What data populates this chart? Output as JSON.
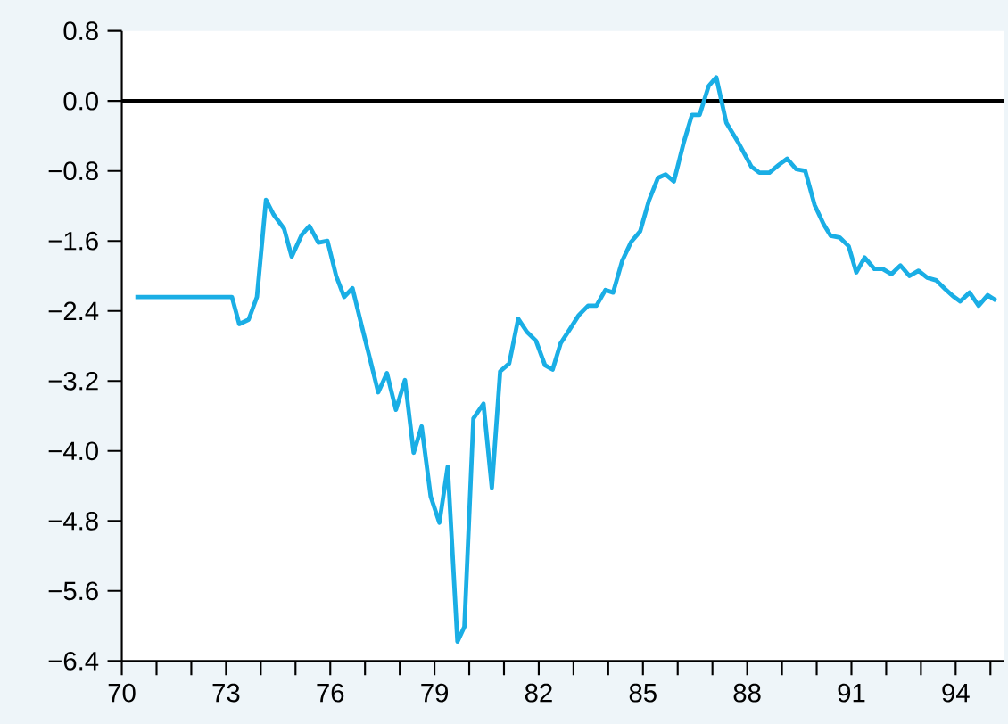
{
  "chart_data": {
    "type": "line",
    "x": [
      70.39,
      73.17,
      73.38,
      73.65,
      73.89,
      74.15,
      74.37,
      74.67,
      74.89,
      75.18,
      75.4,
      75.66,
      75.92,
      76.17,
      76.4,
      76.64,
      76.91,
      77.15,
      77.38,
      77.63,
      77.89,
      78.15,
      78.4,
      78.63,
      78.89,
      79.14,
      79.38,
      79.66,
      79.86,
      80.12,
      80.41,
      80.65,
      80.89,
      81.15,
      81.41,
      81.66,
      81.92,
      82.18,
      82.4,
      82.63,
      82.91,
      83.15,
      83.42,
      83.66,
      83.92,
      84.14,
      84.4,
      84.66,
      84.92,
      85.17,
      85.43,
      85.65,
      85.89,
      86.17,
      86.41,
      86.63,
      86.89,
      87.11,
      87.4,
      87.75,
      88.12,
      88.35,
      88.64,
      88.91,
      89.15,
      89.41,
      89.67,
      89.94,
      90.2,
      90.4,
      90.66,
      90.92,
      91.14,
      91.38,
      91.66,
      91.9,
      92.15,
      92.41,
      92.67,
      92.93,
      93.18,
      93.44,
      93.7,
      93.92,
      94.13,
      94.4,
      94.66,
      94.92,
      95.16
    ],
    "series": [
      {
        "color": "#1aaee5",
        "values": [
          -2.24,
          -2.24,
          -2.55,
          -2.5,
          -2.24,
          -1.13,
          -1.3,
          -1.46,
          -1.78,
          -1.53,
          -1.43,
          -1.62,
          -1.6,
          -2.0,
          -2.24,
          -2.14,
          -2.58,
          -2.96,
          -3.33,
          -3.11,
          -3.53,
          -3.19,
          -4.02,
          -3.72,
          -4.52,
          -4.82,
          -4.18,
          -6.18,
          -6.01,
          -3.63,
          -3.46,
          -4.42,
          -3.09,
          -3.0,
          -2.49,
          -2.64,
          -2.74,
          -3.02,
          -3.07,
          -2.77,
          -2.6,
          -2.45,
          -2.34,
          -2.34,
          -2.16,
          -2.19,
          -1.83,
          -1.61,
          -1.49,
          -1.14,
          -0.88,
          -0.84,
          -0.92,
          -0.48,
          -0.16,
          -0.16,
          0.17,
          0.27,
          -0.25,
          -0.48,
          -0.75,
          -0.82,
          -0.82,
          -0.73,
          -0.66,
          -0.78,
          -0.8,
          -1.19,
          -1.41,
          -1.54,
          -1.56,
          -1.66,
          -1.96,
          -1.79,
          -1.92,
          -1.92,
          -1.98,
          -1.88,
          -2.0,
          -1.94,
          -2.02,
          -2.05,
          -2.15,
          -2.23,
          -2.29,
          -2.19,
          -2.34,
          -2.22,
          -2.28
        ]
      }
    ],
    "xlim": [
      70,
      95.4
    ],
    "xticks": [
      {
        "value": 70,
        "label": "70"
      },
      {
        "value": 71,
        "label": null
      },
      {
        "value": 72,
        "label": null
      },
      {
        "value": 73,
        "label": "73"
      },
      {
        "value": 74,
        "label": null
      },
      {
        "value": 75,
        "label": null
      },
      {
        "value": 76,
        "label": "76"
      },
      {
        "value": 77,
        "label": null
      },
      {
        "value": 78,
        "label": null
      },
      {
        "value": 79,
        "label": "79"
      },
      {
        "value": 80,
        "label": null
      },
      {
        "value": 81,
        "label": null
      },
      {
        "value": 82,
        "label": "82"
      },
      {
        "value": 83,
        "label": null
      },
      {
        "value": 84,
        "label": null
      },
      {
        "value": 85,
        "label": "85"
      },
      {
        "value": 86,
        "label": null
      },
      {
        "value": 87,
        "label": null
      },
      {
        "value": 88,
        "label": "88"
      },
      {
        "value": 89,
        "label": null
      },
      {
        "value": 90,
        "label": null
      },
      {
        "value": 91,
        "label": "91"
      },
      {
        "value": 92,
        "label": null
      },
      {
        "value": 93,
        "label": null
      },
      {
        "value": 94,
        "label": "94"
      },
      {
        "value": 95,
        "label": null
      }
    ],
    "ylim": [
      -6.4,
      0.8
    ],
    "yticks": [
      {
        "value": 0.8,
        "label": "0.8"
      },
      {
        "value": 0.0,
        "label": "0.0"
      },
      {
        "value": -0.8,
        "label": "−0.8"
      },
      {
        "value": -1.6,
        "label": "−1.6"
      },
      {
        "value": -2.4,
        "label": "−2.4"
      },
      {
        "value": -3.2,
        "label": "−3.2"
      },
      {
        "value": -4.0,
        "label": "−4.0"
      },
      {
        "value": -4.8,
        "label": "−4.8"
      },
      {
        "value": -5.6,
        "label": "−5.6"
      },
      {
        "value": -6.4,
        "label": "−6.4"
      }
    ],
    "ref_lines": [
      {
        "axis": "y",
        "value": 0.0,
        "color": "#000000",
        "line_style": "solid"
      }
    ],
    "grid": false,
    "marker": "none",
    "line_style": "solid"
  }
}
